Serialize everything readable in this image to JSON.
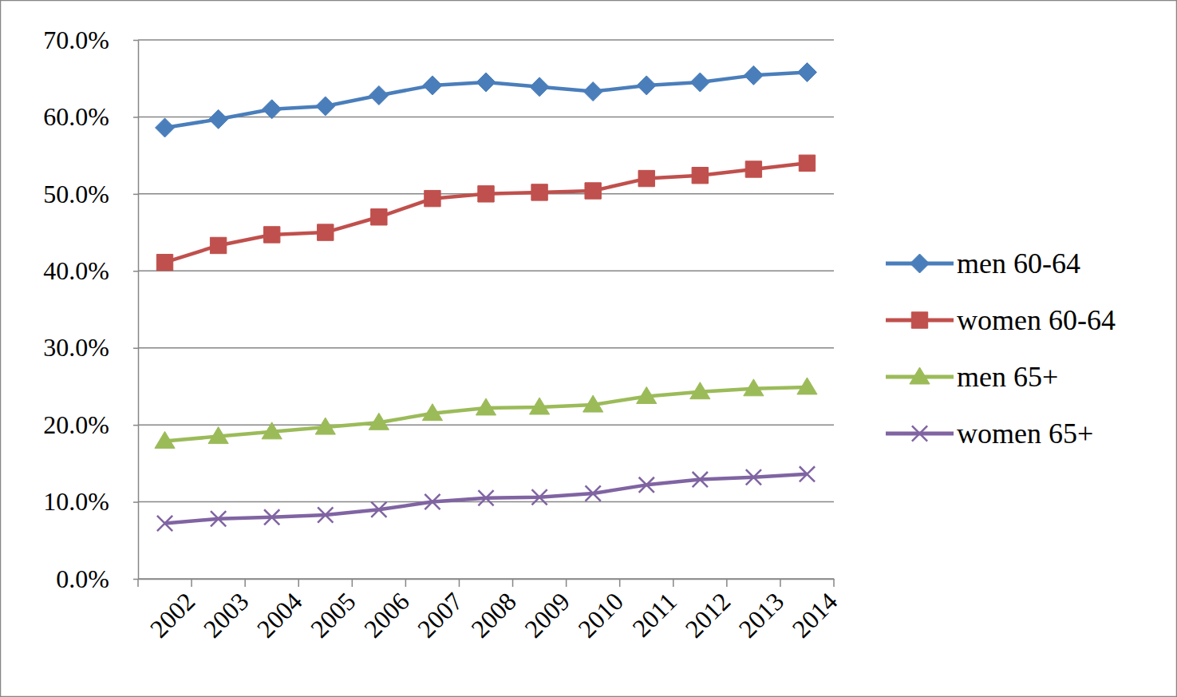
{
  "chart_data": {
    "type": "line",
    "categories": [
      "2002",
      "2003",
      "2004",
      "2005",
      "2006",
      "2007",
      "2008",
      "2009",
      "2010",
      "2011",
      "2012",
      "2013",
      "2014"
    ],
    "series": [
      {
        "name": "men 60-64",
        "color": "#4a7ebb",
        "marker": "diamond",
        "values": [
          58.6,
          59.7,
          61.0,
          61.4,
          62.8,
          64.1,
          64.5,
          63.9,
          63.3,
          64.1,
          64.5,
          65.4,
          65.8
        ]
      },
      {
        "name": "women 60-64",
        "color": "#c0504d",
        "marker": "square",
        "values": [
          41.1,
          43.3,
          44.7,
          45.0,
          47.0,
          49.4,
          50.0,
          50.2,
          50.4,
          52.0,
          52.4,
          53.2,
          54.0
        ]
      },
      {
        "name": "men 65+",
        "color": "#9bbb59",
        "marker": "triangle",
        "values": [
          17.9,
          18.5,
          19.1,
          19.7,
          20.3,
          21.5,
          22.2,
          22.3,
          22.6,
          23.7,
          24.3,
          24.7,
          24.9
        ]
      },
      {
        "name": "women 65+",
        "color": "#8064a2",
        "marker": "x",
        "values": [
          7.2,
          7.8,
          8.0,
          8.3,
          9.0,
          10.0,
          10.5,
          10.6,
          11.1,
          12.2,
          12.9,
          13.2,
          13.6
        ]
      }
    ],
    "ylim": [
      0,
      70
    ],
    "yticks": [
      {
        "value": 0,
        "label": "0.0%"
      },
      {
        "value": 10,
        "label": "10.0%"
      },
      {
        "value": 20,
        "label": "20.0%"
      },
      {
        "value": 30,
        "label": "30.0%"
      },
      {
        "value": 40,
        "label": "40.0%"
      },
      {
        "value": 50,
        "label": "50.0%"
      },
      {
        "value": 60,
        "label": "60.0%"
      },
      {
        "value": 70,
        "label": "70.0%"
      }
    ],
    "grid": true,
    "legend": "right"
  }
}
